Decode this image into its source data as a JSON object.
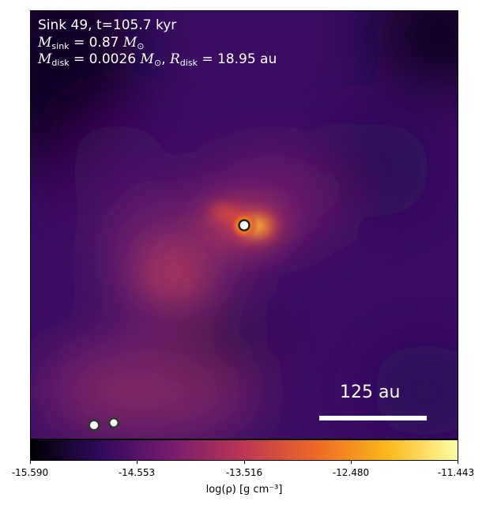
{
  "annotation": {
    "line1": "Sink 49, t=105.7 kyr",
    "line2_var": "M",
    "line2_sub": "sink",
    "line2_rest": " = 0.87 ",
    "line2_unit_var": "M",
    "line2_unit_sub": "⊙",
    "line3_var": "M",
    "line3_sub": "disk",
    "line3_rest": " = 0.0026 ",
    "line3_unit_var": "M",
    "line3_unit_sub": "⊙",
    "line3_sep": ", ",
    "line3_var2": "R",
    "line3_sub2": "disk",
    "line3_rest2": " = 18.95 au"
  },
  "scale_bar": {
    "label": "125 au"
  },
  "colorbar": {
    "ticks": [
      "-15.590",
      "-14.553",
      "-13.516",
      "-12.480",
      "-11.443"
    ],
    "title": "log(ρ) [g cm⁻³]",
    "colormap": "inferno",
    "colors": [
      "#000004",
      "#320a5e",
      "#781c6d",
      "#bc3754",
      "#ed6925",
      "#fbb61a",
      "#fcffa4"
    ]
  },
  "sinks": {
    "count": 3
  }
}
